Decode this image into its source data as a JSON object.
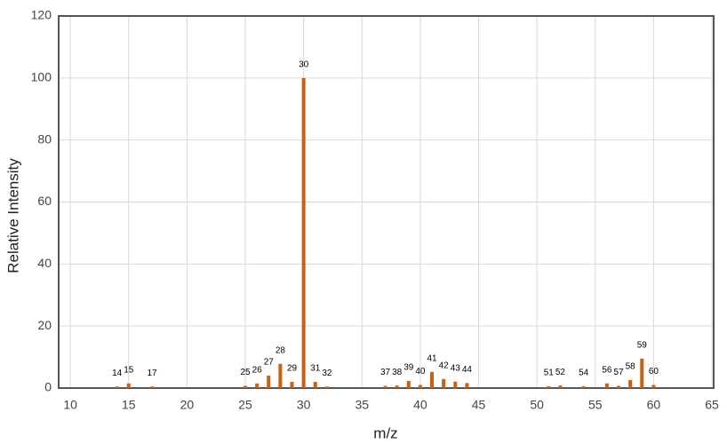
{
  "chart_data": {
    "type": "bar",
    "x_label": "m/z",
    "y_label": "Relative Intensity",
    "x": [
      14,
      15,
      17,
      25,
      26,
      27,
      28,
      29,
      30,
      31,
      32,
      37,
      38,
      39,
      40,
      41,
      42,
      43,
      44,
      51,
      52,
      54,
      56,
      57,
      58,
      59,
      60
    ],
    "values": [
      0.5,
      1.5,
      0.5,
      0.7,
      1.5,
      4,
      7.8,
      2,
      100,
      2,
      0.5,
      0.7,
      0.8,
      2.3,
      1,
      5.2,
      2.9,
      2.1,
      1.6,
      0.6,
      0.8,
      0.6,
      1.5,
      0.7,
      2.6,
      9.5,
      1
    ],
    "color": "#cc6010",
    "xlim": [
      9,
      65.15
    ],
    "xticks": [
      10,
      15,
      20,
      25,
      30,
      35,
      40,
      45,
      50,
      55,
      60,
      65
    ],
    "ylim": [
      0,
      120
    ],
    "yticks": [
      0,
      20,
      40,
      60,
      80,
      100,
      120
    ],
    "grid": true
  }
}
